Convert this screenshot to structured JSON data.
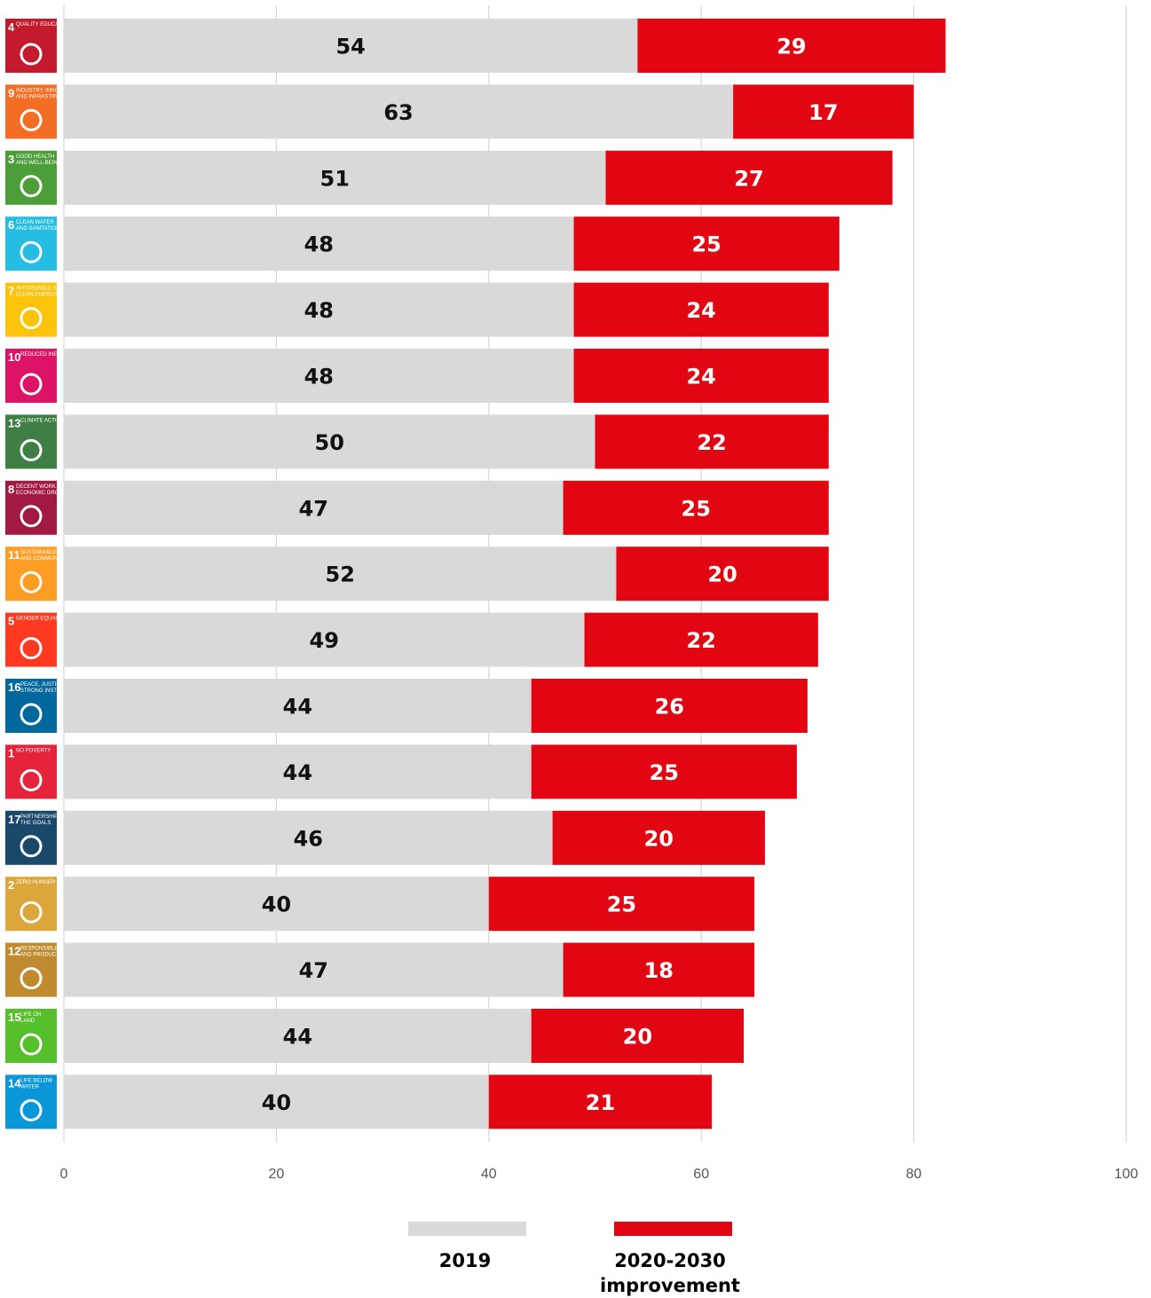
{
  "chart_data": {
    "type": "bar",
    "orientation": "horizontal",
    "stacked": true,
    "xlim": [
      0,
      100
    ],
    "x_ticks": [
      "0",
      "20",
      "40",
      "60",
      "80",
      "100"
    ],
    "grid": "vertical",
    "legend_placement": "bottom-center",
    "colors": {
      "2019": "#d9d9d9",
      "improvement": "#e20613"
    },
    "categories": [
      {
        "goal": "4",
        "title": "QUALITY EDUCATION",
        "color": "#c5192d",
        "icon": "book-pencil-icon"
      },
      {
        "goal": "9",
        "title": "INDUSTRY, INNOVATION AND INFRASTRUCTURE",
        "color": "#f36d25",
        "icon": "cubes-icon"
      },
      {
        "goal": "3",
        "title": "GOOD HEALTH AND WELL-BEING",
        "color": "#4c9f38",
        "icon": "heartbeat-icon"
      },
      {
        "goal": "6",
        "title": "CLEAN WATER AND SANITATION",
        "color": "#26bde2",
        "icon": "water-drop-icon"
      },
      {
        "goal": "7",
        "title": "AFFORDABLE AND CLEAN ENERGY",
        "color": "#fcc30b",
        "icon": "sun-icon"
      },
      {
        "goal": "10",
        "title": "REDUCED INEQUALITIES",
        "color": "#dd1367",
        "icon": "equal-arrows-icon"
      },
      {
        "goal": "13",
        "title": "CLIMATE ACTION",
        "color": "#3f7e44",
        "icon": "eye-globe-icon"
      },
      {
        "goal": "8",
        "title": "DECENT WORK AND ECONOMIC GROWTH",
        "color": "#a21942",
        "icon": "growth-chart-icon"
      },
      {
        "goal": "11",
        "title": "SUSTAINABLE CITIES AND COMMUNITIES",
        "color": "#fd9d24",
        "icon": "city-icon"
      },
      {
        "goal": "5",
        "title": "GENDER EQUALITY",
        "color": "#ff3a21",
        "icon": "gender-symbol-icon"
      },
      {
        "goal": "16",
        "title": "PEACE, JUSTICE AND STRONG INSTITUTIONS",
        "color": "#00689d",
        "icon": "dove-gavel-icon"
      },
      {
        "goal": "1",
        "title": "NO POVERTY",
        "color": "#e5243b",
        "icon": "family-icon"
      },
      {
        "goal": "17",
        "title": "PARTNERSHIPS FOR THE GOALS",
        "color": "#19486a",
        "icon": "rings-flower-icon"
      },
      {
        "goal": "2",
        "title": "ZERO HUNGER",
        "color": "#dda63a",
        "icon": "bowl-icon"
      },
      {
        "goal": "12",
        "title": "RESPONSIBLE CONSUMPTION AND PRODUCTION",
        "color": "#bf8b2e",
        "icon": "infinity-icon"
      },
      {
        "goal": "15",
        "title": "LIFE ON LAND",
        "color": "#56c02b",
        "icon": "tree-bird-icon"
      },
      {
        "goal": "14",
        "title": "LIFE BELOW WATER",
        "color": "#0a97d9",
        "icon": "fish-waves-icon"
      }
    ],
    "series": [
      {
        "name": "2019",
        "values": [
          54,
          63,
          51,
          48,
          48,
          48,
          50,
          47,
          52,
          49,
          44,
          44,
          46,
          40,
          47,
          44,
          40
        ]
      },
      {
        "name": "2020-2030 improvement",
        "values": [
          29,
          17,
          27,
          25,
          24,
          24,
          22,
          25,
          20,
          22,
          26,
          25,
          20,
          25,
          18,
          20,
          21
        ]
      }
    ],
    "legend": [
      {
        "label_line1": "2019",
        "label_line2": ""
      },
      {
        "label_line1": "2020-2030",
        "label_line2": "improvement"
      }
    ]
  }
}
